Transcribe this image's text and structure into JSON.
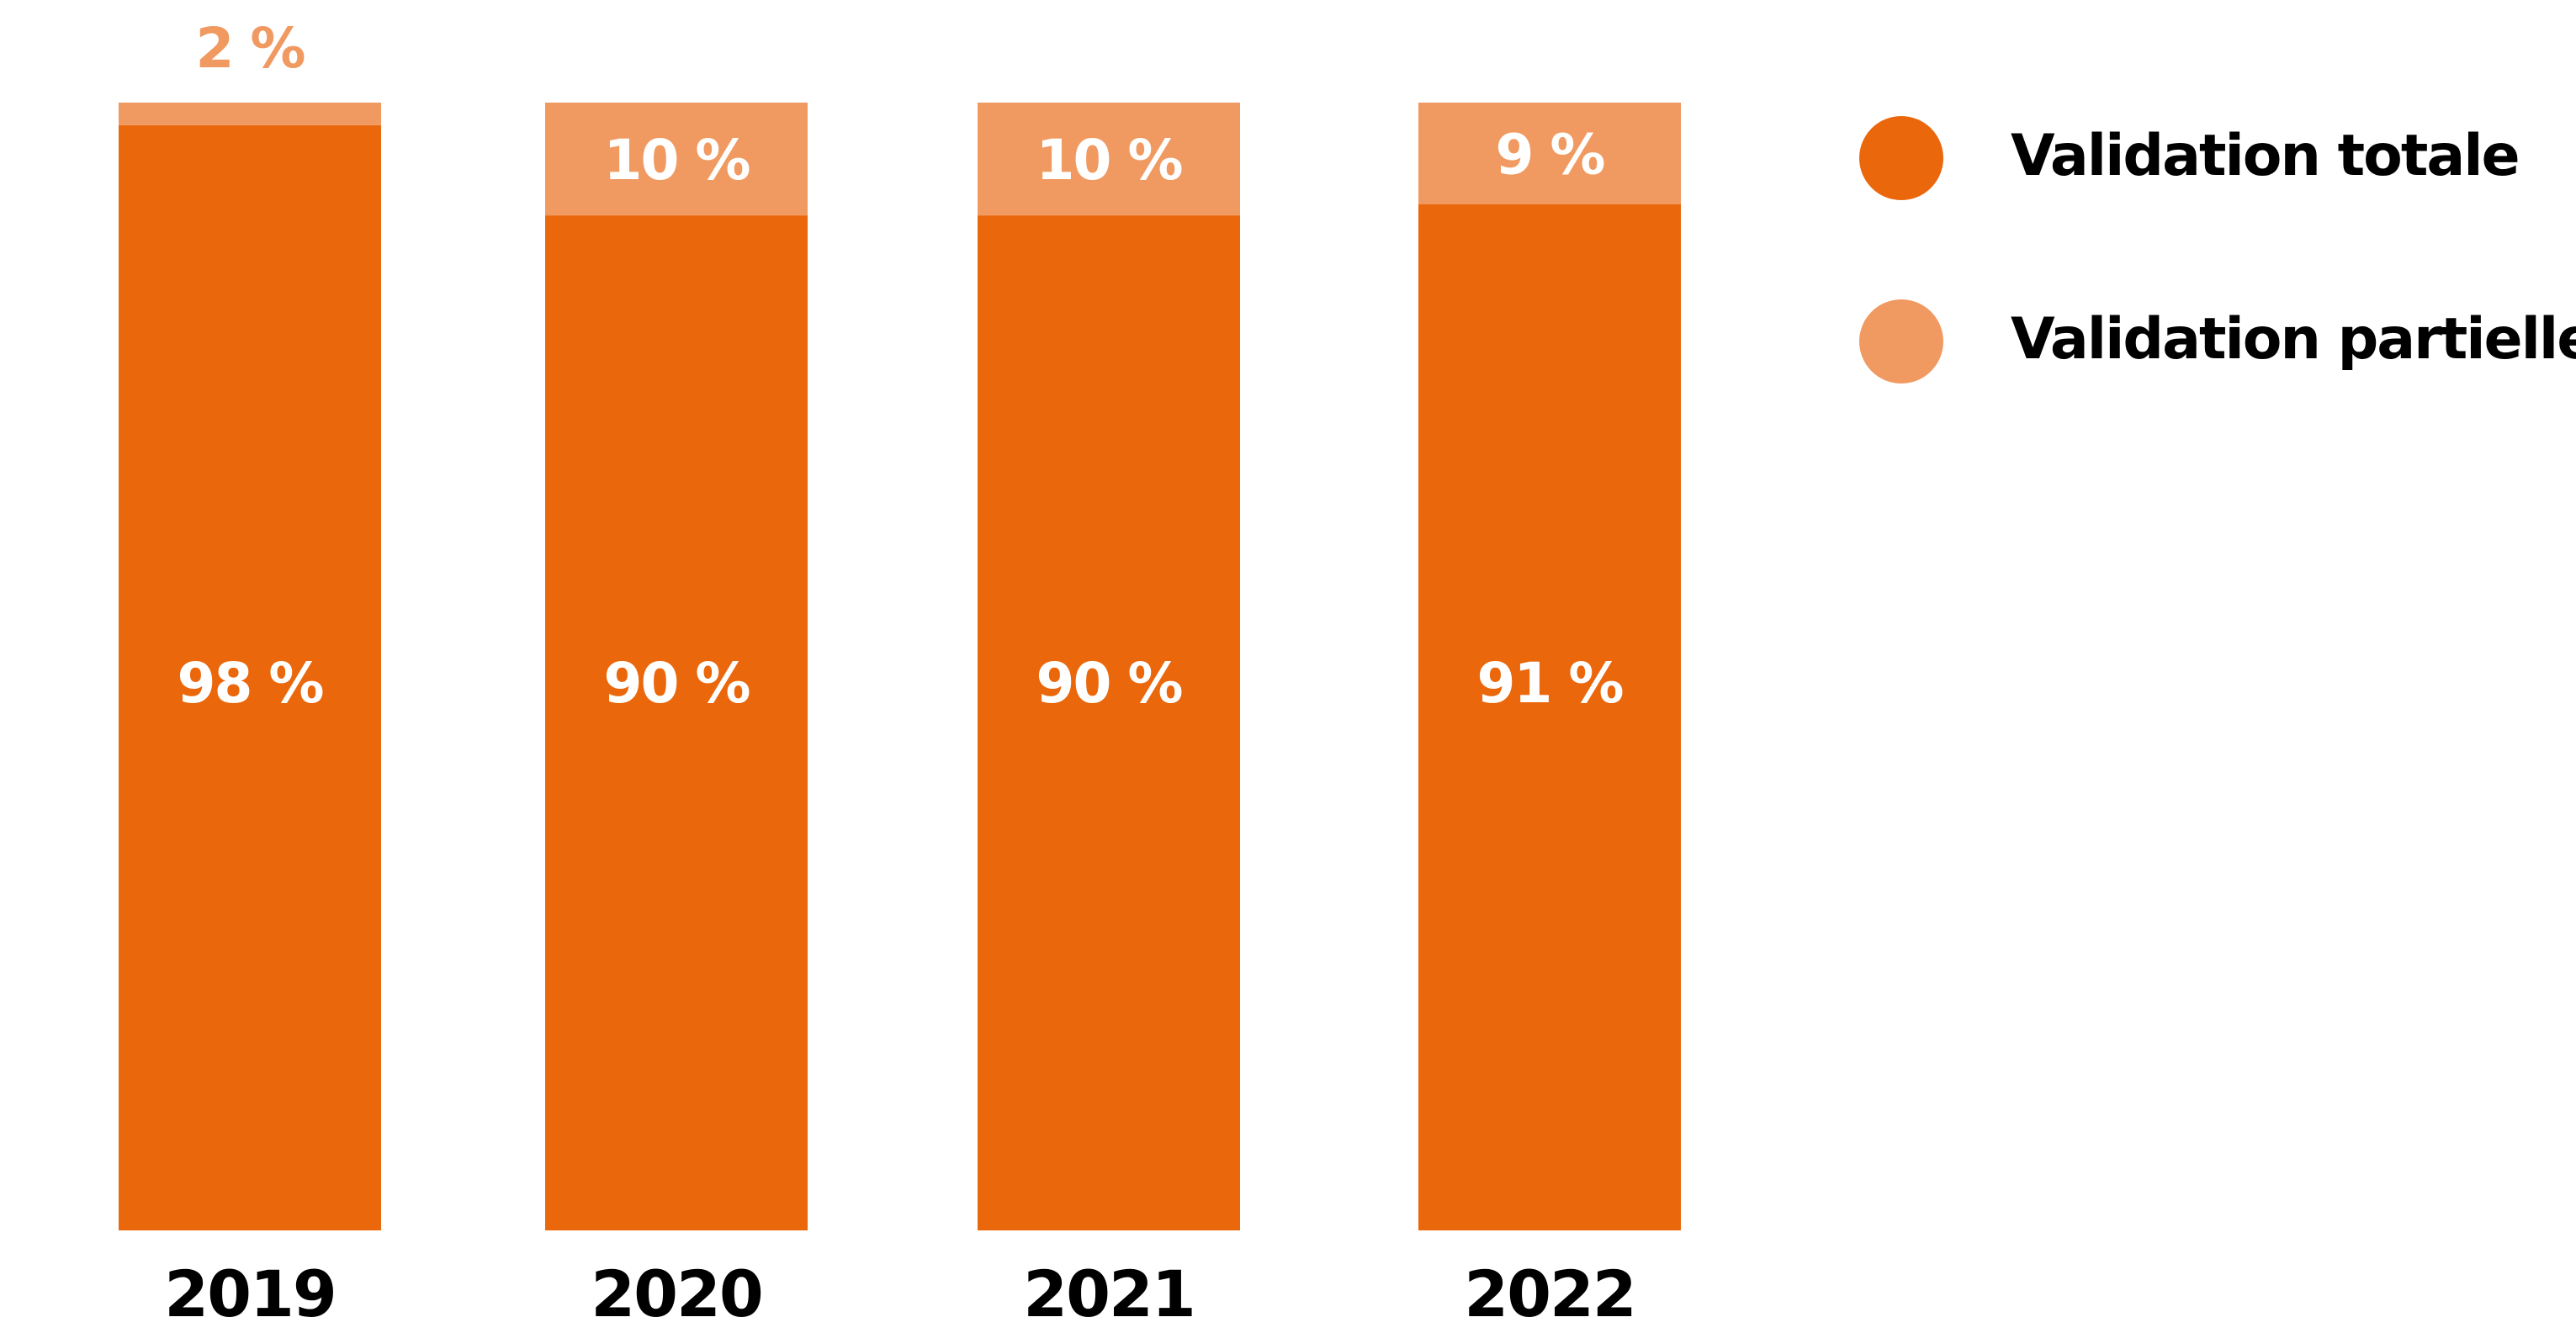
{
  "chart_data": {
    "type": "bar",
    "stacked": true,
    "categories": [
      "2019",
      "2020",
      "2021",
      "2022"
    ],
    "series": [
      {
        "name": "Validation totale",
        "values": [
          98,
          90,
          90,
          91
        ],
        "labels": [
          "98 %",
          "90 %",
          "90 %",
          "91 %"
        ],
        "color": "#EA670C"
      },
      {
        "name": "Validation partielle",
        "values": [
          2,
          10,
          10,
          9
        ],
        "labels": [
          "2 %",
          "10 %",
          "10 %",
          "9 %"
        ],
        "color": "#F09A62"
      }
    ],
    "ylim": [
      0,
      100
    ],
    "grid": false,
    "legend_position": "top-right"
  }
}
